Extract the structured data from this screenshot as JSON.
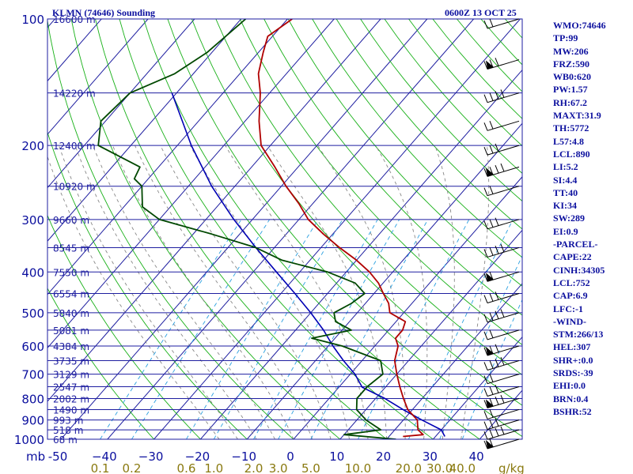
{
  "header": {
    "station": "KLMN (74646) Sounding",
    "valid_time": "0600Z 13 OCT 25"
  },
  "indices": [
    "WMO:74646",
    "TP:99",
    "MW:206",
    "FRZ:590",
    "WB0:620",
    "PW:1.57",
    "RH:67.2",
    "MAXT:31.9",
    "TH:5772",
    "L57:4.8",
    "LCL:890",
    "LI:5.2",
    "SI:4.4",
    "TT:40",
    "KI:34",
    "SW:289",
    "EI:0.9",
    "-PARCEL-",
    "CAPE:22",
    "CINH:34305",
    "LCL:752",
    "CAP:6.9",
    "LFC:-1",
    "-WIND-",
    "STM:266/13",
    "HEL:307",
    "SHR+:0.0",
    "SRDS:-39",
    "EHI:0.0",
    "BRN:0.4",
    "BSHR:52"
  ],
  "colors": {
    "text": "#0b0f9e",
    "isobar": "#1e1ea0",
    "isotherm": "#1e1ea0",
    "dry_adiabat": "#18b018",
    "moist_adiabat": "#888888",
    "mixing_ratio": "#2aa0e0",
    "temperature": "#b00000",
    "dewpoint": "#004800",
    "parcel": "#0000b4",
    "bottom_axis_text": "#0b0f9e",
    "mixing_axis_text": "#8a7a10"
  },
  "chart_data": {
    "type": "skew-t",
    "pressure_levels": [
      100,
      200,
      300,
      400,
      500,
      600,
      700,
      800,
      900,
      1000
    ],
    "pressure_unit": "mb",
    "temperature_ticks": [
      -50,
      -40,
      -30,
      -20,
      -10,
      0,
      10,
      20,
      30,
      40
    ],
    "temperature_tick_labels": [
      "-50",
      "−40",
      "−30",
      "−20",
      "−10",
      "0",
      "10",
      "20",
      "30",
      "40"
    ],
    "mixing_ratio_ticks": [
      0.1,
      0.2,
      0.6,
      1.0,
      2.0,
      3.0,
      5.0,
      10.0,
      20.0,
      30.0,
      40.0
    ],
    "mixing_ratio_labels": [
      "0.1",
      "0.2",
      "0.6",
      "1.0",
      "2.0",
      "3.0",
      "5.0",
      "10.0",
      "20.0",
      "30.0",
      "40.0"
    ],
    "mixing_ratio_unit": "g/kg",
    "height_labels": [
      {
        "p": 100,
        "label": "16600 m"
      },
      {
        "p": 150,
        "label": "14220 m"
      },
      {
        "p": 200,
        "label": "12400 m"
      },
      {
        "p": 250,
        "label": "10920 m"
      },
      {
        "p": 300,
        "label": "9660 m"
      },
      {
        "p": 350,
        "label": "8545 m"
      },
      {
        "p": 400,
        "label": "7550 m"
      },
      {
        "p": 450,
        "label": "6554 m"
      },
      {
        "p": 500,
        "label": "5840 m"
      },
      {
        "p": 550,
        "label": "5081 m"
      },
      {
        "p": 600,
        "label": "4384 m"
      },
      {
        "p": 650,
        "label": "3735 m"
      },
      {
        "p": 700,
        "label": "3129 m"
      },
      {
        "p": 750,
        "label": "2547 m"
      },
      {
        "p": 800,
        "label": "2002 m"
      },
      {
        "p": 850,
        "label": "1490 m"
      },
      {
        "p": 900,
        "label": "993 m"
      },
      {
        "p": 950,
        "label": "518 m"
      },
      {
        "p": 1000,
        "label": "68 m"
      }
    ],
    "temperature": [
      {
        "p": 100,
        "t": -79
      },
      {
        "p": 110,
        "t": -81
      },
      {
        "p": 120,
        "t": -79
      },
      {
        "p": 135,
        "t": -76
      },
      {
        "p": 150,
        "t": -72
      },
      {
        "p": 175,
        "t": -67
      },
      {
        "p": 200,
        "t": -62
      },
      {
        "p": 225,
        "t": -55
      },
      {
        "p": 250,
        "t": -49
      },
      {
        "p": 275,
        "t": -43
      },
      {
        "p": 300,
        "t": -38
      },
      {
        "p": 325,
        "t": -32
      },
      {
        "p": 350,
        "t": -26
      },
      {
        "p": 375,
        "t": -20
      },
      {
        "p": 400,
        "t": -15
      },
      {
        "p": 425,
        "t": -11
      },
      {
        "p": 450,
        "t": -8
      },
      {
        "p": 475,
        "t": -5
      },
      {
        "p": 500,
        "t": -3
      },
      {
        "p": 525,
        "t": 2
      },
      {
        "p": 550,
        "t": 3
      },
      {
        "p": 575,
        "t": 3
      },
      {
        "p": 600,
        "t": 5
      },
      {
        "p": 650,
        "t": 7
      },
      {
        "p": 700,
        "t": 10
      },
      {
        "p": 750,
        "t": 13
      },
      {
        "p": 800,
        "t": 16
      },
      {
        "p": 850,
        "t": 19
      },
      {
        "p": 900,
        "t": 23
      },
      {
        "p": 925,
        "t": 24
      },
      {
        "p": 950,
        "t": 25
      },
      {
        "p": 975,
        "t": 27
      },
      {
        "p": 985,
        "t": 23
      }
    ],
    "dewpoint": [
      {
        "p": 100,
        "t": -89
      },
      {
        "p": 120,
        "t": -91
      },
      {
        "p": 135,
        "t": -94
      },
      {
        "p": 150,
        "t": -100
      },
      {
        "p": 175,
        "t": -101
      },
      {
        "p": 200,
        "t": -97
      },
      {
        "p": 225,
        "t": -84
      },
      {
        "p": 240,
        "t": -83
      },
      {
        "p": 250,
        "t": -80
      },
      {
        "p": 280,
        "t": -76
      },
      {
        "p": 300,
        "t": -70
      },
      {
        "p": 325,
        "t": -56
      },
      {
        "p": 350,
        "t": -44
      },
      {
        "p": 375,
        "t": -36
      },
      {
        "p": 400,
        "t": -24
      },
      {
        "p": 425,
        "t": -16
      },
      {
        "p": 450,
        "t": -12
      },
      {
        "p": 475,
        "t": -13
      },
      {
        "p": 500,
        "t": -15
      },
      {
        "p": 525,
        "t": -13
      },
      {
        "p": 550,
        "t": -8
      },
      {
        "p": 575,
        "t": -15
      },
      {
        "p": 600,
        "t": -7
      },
      {
        "p": 650,
        "t": 4
      },
      {
        "p": 700,
        "t": 7
      },
      {
        "p": 750,
        "t": 6
      },
      {
        "p": 800,
        "t": 6
      },
      {
        "p": 850,
        "t": 8
      },
      {
        "p": 900,
        "t": 12
      },
      {
        "p": 950,
        "t": 17
      },
      {
        "p": 975,
        "t": 10
      },
      {
        "p": 1000,
        "t": 22
      }
    ],
    "parcel": [
      {
        "p": 150,
        "t": -91
      },
      {
        "p": 200,
        "t": -77
      },
      {
        "p": 250,
        "t": -65
      },
      {
        "p": 300,
        "t": -54
      },
      {
        "p": 350,
        "t": -44
      },
      {
        "p": 400,
        "t": -35
      },
      {
        "p": 450,
        "t": -27
      },
      {
        "p": 500,
        "t": -20
      },
      {
        "p": 550,
        "t": -14
      },
      {
        "p": 600,
        "t": -9
      },
      {
        "p": 650,
        "t": -4
      },
      {
        "p": 700,
        "t": 1
      },
      {
        "p": 752,
        "t": 5
      },
      {
        "p": 800,
        "t": 12
      },
      {
        "p": 850,
        "t": 18
      },
      {
        "p": 900,
        "t": 24
      },
      {
        "p": 950,
        "t": 30
      },
      {
        "p": 985,
        "t": 32
      }
    ],
    "wind_barb_levels": [
      100,
      125,
      150,
      175,
      200,
      225,
      250,
      300,
      350,
      400,
      450,
      500,
      550,
      600,
      650,
      700,
      750,
      800,
      850,
      900,
      950,
      1000
    ]
  }
}
